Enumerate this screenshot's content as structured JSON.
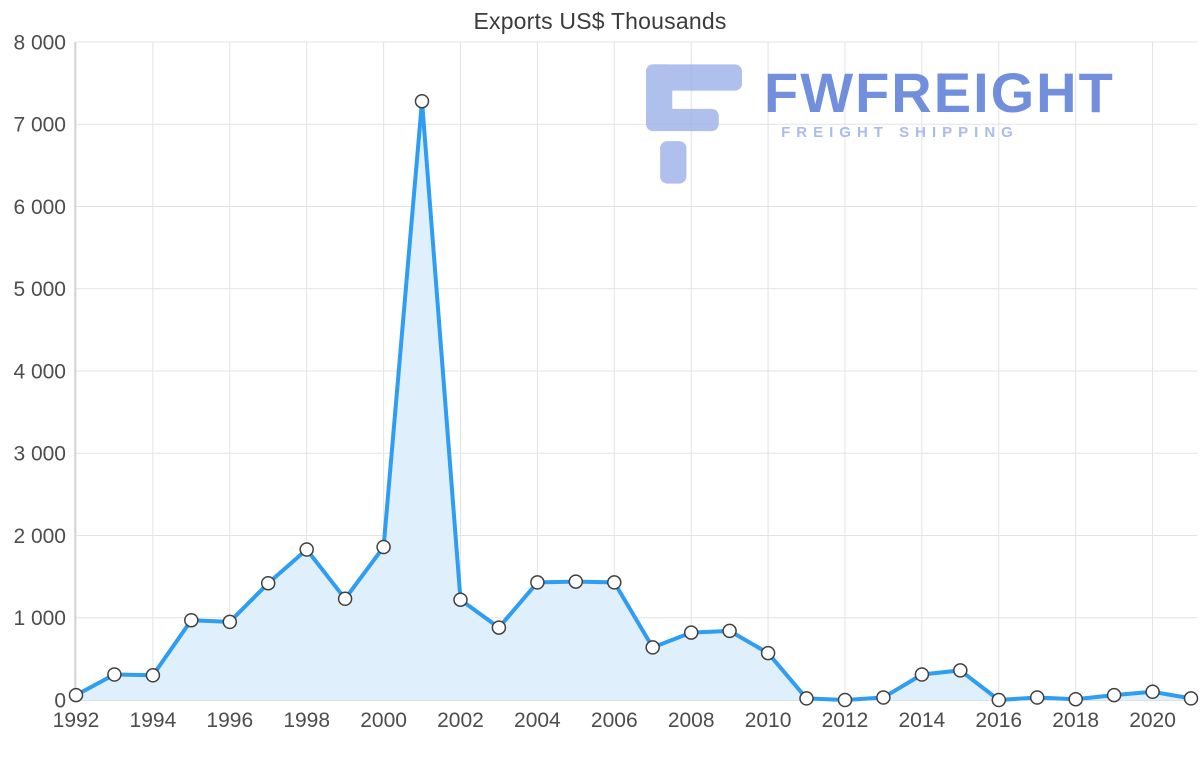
{
  "chart_data": {
    "type": "area",
    "title": "Exports US$ Thousands",
    "xlabel": "",
    "ylabel": "",
    "x": [
      1992,
      1993,
      1994,
      1995,
      1996,
      1997,
      1998,
      1999,
      2000,
      2001,
      2002,
      2003,
      2004,
      2005,
      2006,
      2007,
      2008,
      2009,
      2010,
      2011,
      2012,
      2013,
      2014,
      2015,
      2016,
      2017,
      2018,
      2019,
      2020,
      2021
    ],
    "values": [
      60,
      310,
      300,
      970,
      950,
      1420,
      1830,
      1230,
      1860,
      7280,
      1220,
      880,
      1430,
      1440,
      1430,
      640,
      820,
      840,
      570,
      20,
      0,
      30,
      310,
      360,
      0,
      30,
      10,
      60,
      100,
      20
    ],
    "ylim": [
      0,
      8000
    ],
    "ytick_step": 1000,
    "xticks": [
      1992,
      1994,
      1996,
      1998,
      2000,
      2002,
      2004,
      2006,
      2008,
      2010,
      2012,
      2014,
      2016,
      2018,
      2020
    ],
    "grid": true,
    "legend": "none",
    "line_color": "#2e9df2",
    "fill_color": "#dfeffc",
    "marker_fill": "#ffffff",
    "marker_stroke": "#3f3f3f",
    "grid_color": "#e3e3e3",
    "axis_color": "#c2c2c2",
    "tick_label_color": "#4d4d4d"
  },
  "watermark": {
    "name": "FWFREIGHT",
    "subtitle": "FREIGHT SHIPPING",
    "brand_color": "#5a7cd8"
  }
}
